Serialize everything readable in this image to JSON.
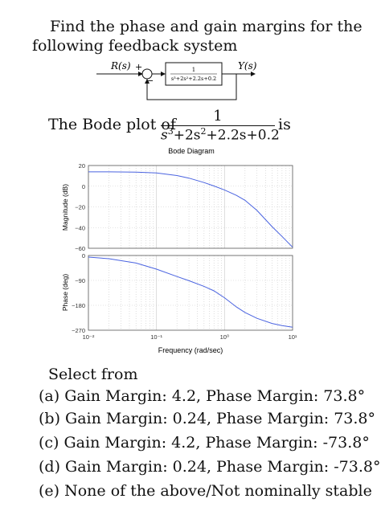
{
  "question": {
    "line1": "Find the phase and gain margins for the",
    "line2": "following feedback system"
  },
  "block_diagram": {
    "input_label": "R(s)",
    "plus_sign": "+",
    "minus_sign": "−",
    "output_label": "Y(s)",
    "tf_numerator": "1",
    "tf_denominator": "s³+2s²+2.2s+0.2"
  },
  "bode_statement": {
    "prefix": "The Bode plot of",
    "numerator": "1",
    "denominator_base": "s",
    "denominator_text": "+2s",
    "denominator_rest": "+2.2s+0.2",
    "exp3": "3",
    "exp2": "2",
    "suffix": "is"
  },
  "chart_data": [
    {
      "type": "line",
      "title": "Bode Diagram",
      "ylabel": "Magnitude (dB)",
      "xlabel": "",
      "x_scale": "log",
      "xlim": [
        0.01,
        10
      ],
      "ylim": [
        -60,
        20
      ],
      "yticks": [
        "20",
        "0",
        "−20",
        "−40",
        "−60"
      ],
      "grid": true,
      "series": [
        {
          "x": [
            0.01,
            0.02,
            0.05,
            0.1,
            0.2,
            0.3,
            0.5,
            0.7,
            1,
            1.5,
            2,
            3,
            5,
            7,
            10
          ],
          "values": [
            13.9,
            13.9,
            13.6,
            12.8,
            10.3,
            7.8,
            3.5,
            0.2,
            -3.6,
            -8.9,
            -13.6,
            -23.4,
            -39.1,
            -48.6,
            -59
          ]
        }
      ]
    },
    {
      "type": "line",
      "ylabel": "Phase (deg)",
      "xlabel": "Frequency (rad/sec)",
      "x_scale": "log",
      "xlim": [
        0.01,
        10
      ],
      "ylim": [
        -270,
        0
      ],
      "yticks": [
        "0",
        "−90",
        "−180",
        "−270"
      ],
      "xticks": [
        "10⁻²",
        "10⁻¹",
        "10⁰",
        "10¹"
      ],
      "grid": true,
      "series": [
        {
          "x": [
            0.01,
            0.02,
            0.05,
            0.1,
            0.2,
            0.3,
            0.5,
            0.7,
            1,
            1.5,
            2,
            3,
            5,
            7,
            10
          ],
          "values": [
            -5.8,
            -11.5,
            -27.4,
            -49.4,
            -76.2,
            -91.3,
            -111.5,
            -127.7,
            -152.6,
            -186.1,
            -205.9,
            -226.9,
            -245.6,
            -253.3,
            -258.9
          ]
        }
      ]
    }
  ],
  "answer_section": {
    "prompt": "Select from",
    "options": [
      "(a)  Gain Margin: 4.2, Phase Margin: 73.8°",
      "(b)  Gain Margin: 0.24, Phase Margin: 73.8°",
      "(c)  Gain Margin: 4.2, Phase Margin: -73.8°",
      "(d)  Gain Margin: 0.24, Phase Margin: -73.8°",
      "(e)  None of the above/Not nominally stable"
    ]
  },
  "colors": {
    "curve": "#4a63e0",
    "text": "#111111",
    "grid": "#c8c8c8"
  }
}
